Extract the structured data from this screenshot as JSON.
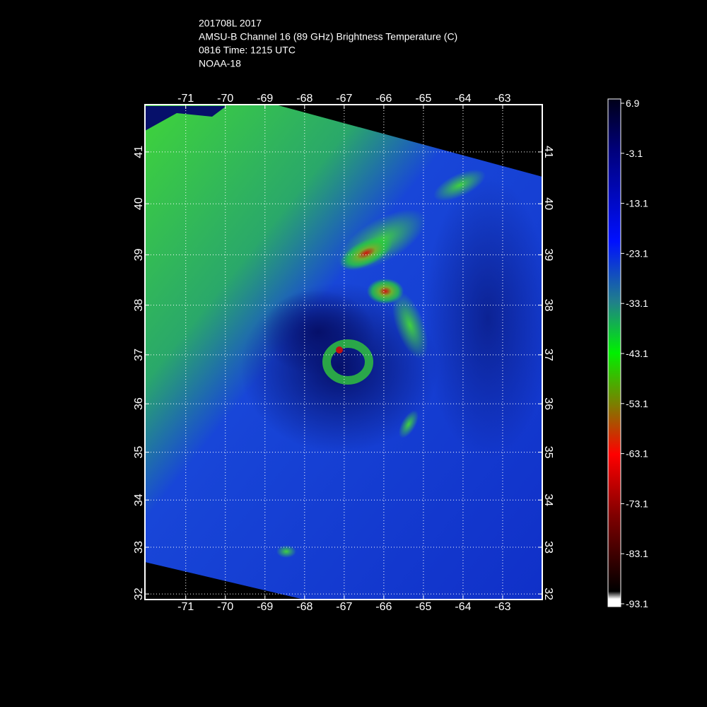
{
  "header": {
    "lines": [
      "201708L 2017",
      "AMSU-B Channel 16 (89 GHz) Brightness Temperature (C)",
      "0816 Time: 1215 UTC",
      "NOAA-18"
    ]
  },
  "map": {
    "lonlim": [
      -72.03,
      -62
    ],
    "latlim": [
      31.88,
      41.9
    ],
    "lon_ticks": [
      -71,
      -70,
      -69,
      -68,
      -67,
      -66,
      -65,
      -64,
      -63
    ],
    "lat_ticks": [
      41,
      40,
      39,
      38,
      37,
      36,
      35,
      34,
      33,
      32
    ]
  },
  "colorbar": {
    "range": [
      -93.1,
      6.9
    ],
    "ticks": [
      6.9,
      -3.1,
      -13.1,
      -23.1,
      -33.1,
      -43.1,
      -53.1,
      -63.1,
      -73.1,
      -83.1,
      -93.1
    ]
  }
}
